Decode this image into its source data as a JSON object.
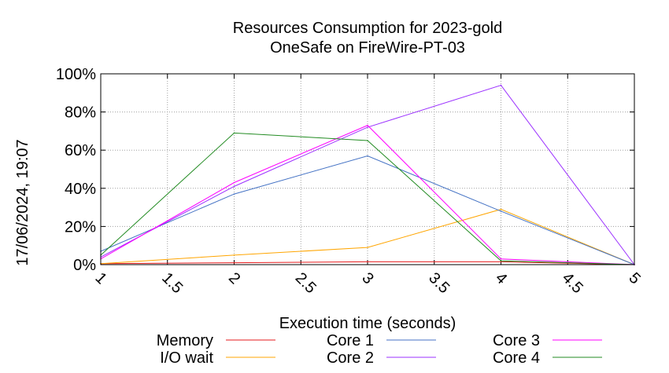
{
  "chart_data": {
    "type": "line",
    "title": "Resources Consumption for 2023-gold",
    "subtitle": "OneSafe on FireWire-PT-03",
    "xlabel": "Execution time (seconds)",
    "ylabel": "",
    "xlim": [
      1,
      5
    ],
    "ylim": [
      0,
      100
    ],
    "x_ticks": [
      "1",
      "1.5",
      "2",
      "2.5",
      "3",
      "3.5",
      "4",
      "4.5",
      "5"
    ],
    "y_ticks": [
      "0%",
      "20%",
      "40%",
      "60%",
      "80%",
      "100%"
    ],
    "grid": true,
    "legend_position": "bottom",
    "x": [
      1,
      2,
      3,
      4,
      5
    ],
    "series": [
      {
        "name": "Memory",
        "color": "#e41a1c",
        "values": [
          0.5,
          1,
          1.5,
          1.5,
          0
        ]
      },
      {
        "name": "I/O wait",
        "color": "#ffa500",
        "values": [
          0.5,
          5,
          9,
          29,
          0
        ]
      },
      {
        "name": "Core 1",
        "color": "#4472c4",
        "values": [
          7,
          37,
          57,
          28,
          0
        ]
      },
      {
        "name": "Core 2",
        "color": "#9b30ff",
        "values": [
          4,
          41,
          72,
          94,
          0
        ]
      },
      {
        "name": "Core 3",
        "color": "#ff00ff",
        "values": [
          3,
          43,
          73,
          3,
          0
        ]
      },
      {
        "name": "Core 4",
        "color": "#228b22",
        "values": [
          5,
          69,
          65,
          2,
          0
        ]
      }
    ]
  },
  "timestamp": "17/06/2024, 19:07"
}
